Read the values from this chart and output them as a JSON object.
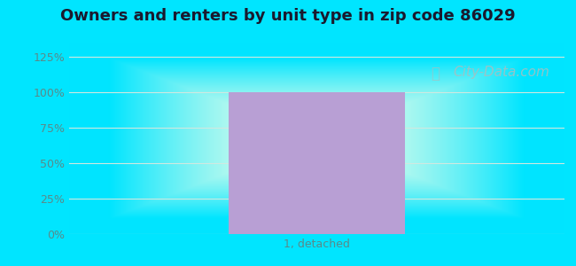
{
  "title": "Owners and renters by unit type in zip code 86029",
  "categories": [
    "1, detached"
  ],
  "values": [
    100
  ],
  "bar_color": "#b89fd4",
  "bar_width": 0.5,
  "yticks": [
    0,
    25,
    50,
    75,
    100,
    125
  ],
  "ytick_labels": [
    "0%",
    "25%",
    "50%",
    "75%",
    "100%",
    "125%"
  ],
  "ylim": [
    0,
    135
  ],
  "title_fontsize": 13,
  "tick_fontsize": 9,
  "xlabel_fontsize": 9,
  "tick_color": "#5a8a8a",
  "bg_cyan": [
    0,
    0.898,
    1.0
  ],
  "bg_inner": [
    0.937,
    1.0,
    0.918
  ],
  "watermark_text": "City-Data.com",
  "watermark_color": "#a8bfc0",
  "watermark_fontsize": 11,
  "grid_color": "#d0e8e0",
  "figure_width": 6.5,
  "figure_height": 3.0,
  "dpi": 100
}
